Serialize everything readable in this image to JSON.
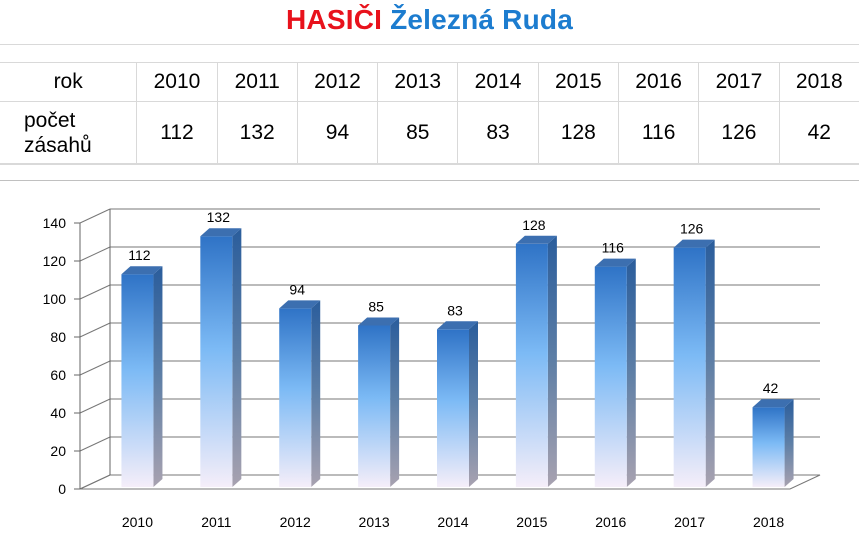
{
  "title": {
    "part1": "HASIČI",
    "part2": "Železná Ruda"
  },
  "table": {
    "row1_label": "rok",
    "row2_label_line1": "počet",
    "row2_label_line2": "zásahů",
    "years": [
      "2010",
      "2011",
      "2012",
      "2013",
      "2014",
      "2015",
      "2016",
      "2017",
      "2018"
    ],
    "values": [
      "112",
      "132",
      "94",
      "85",
      "83",
      "128",
      "116",
      "126",
      "42"
    ]
  },
  "colors": {
    "title_red": "#e8121c",
    "title_blue": "#1c7ccf",
    "bar_top": "#2f73c6",
    "bar_mid": "#7cbaf5",
    "bar_bottom": "#f5eef9"
  },
  "chart_data": {
    "type": "bar",
    "style": "3d-column",
    "categories": [
      "2010",
      "2011",
      "2012",
      "2013",
      "2014",
      "2015",
      "2016",
      "2017",
      "2018"
    ],
    "values": [
      112,
      132,
      94,
      85,
      83,
      128,
      116,
      126,
      42
    ],
    "yticks": [
      "0",
      "20",
      "40",
      "60",
      "80",
      "100",
      "120",
      "140"
    ],
    "ylim": [
      0,
      140
    ],
    "grid": true,
    "legend": "none",
    "data_labels": true
  }
}
